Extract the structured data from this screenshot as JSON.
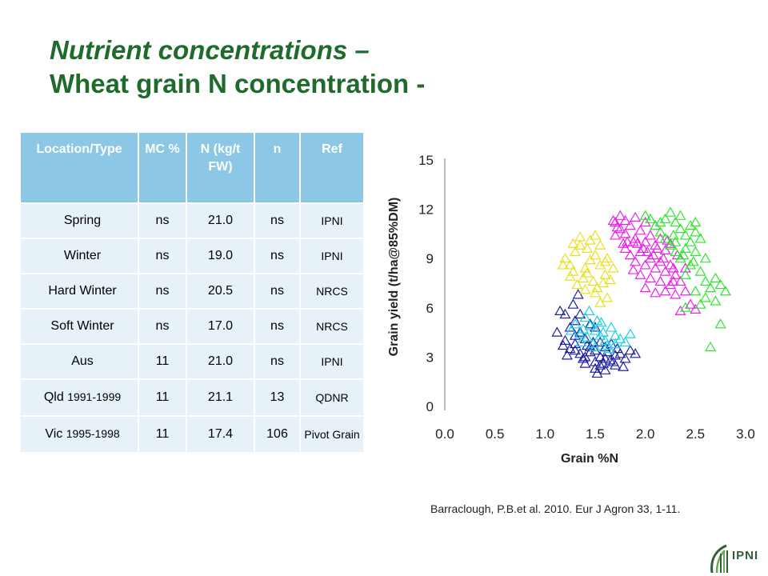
{
  "slide": {
    "title_line1": "Nutrient concentrations –",
    "title_line2": "Wheat grain N concentration -",
    "citation": "Barraclough, P.B.et al. 2010. Eur J Agron 33, 1-11.",
    "logo_text": "IPNI",
    "colors": {
      "title": "#1e6b2c",
      "header_bg": "#8cc7e6",
      "row_bg": "#e7f1f8"
    }
  },
  "table": {
    "headers": [
      "Location/Type",
      "MC %",
      "N (kg/t FW)",
      "n",
      "Ref"
    ],
    "rows": [
      {
        "loc": "Spring",
        "loc_years": "",
        "mc": "ns",
        "n_conc": "21.0",
        "n": "ns",
        "ref": "IPNI"
      },
      {
        "loc": "Winter",
        "loc_years": "",
        "mc": "ns",
        "n_conc": "19.0",
        "n": "ns",
        "ref": "IPNI"
      },
      {
        "loc": "Hard Winter",
        "loc_years": "",
        "mc": "ns",
        "n_conc": "20.5",
        "n": "ns",
        "ref": "NRCS"
      },
      {
        "loc": "Soft Winter",
        "loc_years": "",
        "mc": "ns",
        "n_conc": "17.0",
        "n": "ns",
        "ref": "NRCS"
      },
      {
        "loc": "Aus",
        "loc_years": "",
        "mc": "11",
        "n_conc": "21.0",
        "n": "ns",
        "ref": "IPNI"
      },
      {
        "loc": "Qld",
        "loc_years": "1991-1999",
        "mc": "11",
        "n_conc": "21.1",
        "n": "13",
        "ref": "QDNR"
      },
      {
        "loc": "Vic",
        "loc_years": "1995-1998",
        "mc": "11",
        "n_conc": "17.4",
        "n": "106",
        "ref": "Pivot Grain"
      }
    ]
  },
  "chart_data": {
    "type": "scatter",
    "xlabel": "Grain %N",
    "ylabel": "Grain yield (t/ha@85%DM)",
    "xlim": [
      0.0,
      3.0
    ],
    "ylim": [
      0,
      15
    ],
    "xticks": [
      "0.0",
      "0.5",
      "1.0",
      "1.5",
      "2.0",
      "2.5",
      "3.0"
    ],
    "yticks": [
      "0",
      "3",
      "6",
      "9",
      "12",
      "15"
    ],
    "marker": "open-triangle",
    "grid": false,
    "series": [
      {
        "color": "#2020a0",
        "points": [
          [
            1.2,
            5.6
          ],
          [
            1.3,
            5.2
          ],
          [
            1.25,
            4.8
          ],
          [
            1.35,
            4.5
          ],
          [
            1.4,
            4.1
          ],
          [
            1.3,
            3.8
          ],
          [
            1.45,
            3.6
          ],
          [
            1.5,
            3.4
          ],
          [
            1.35,
            3.2
          ],
          [
            1.55,
            3.0
          ],
          [
            1.6,
            2.9
          ],
          [
            1.4,
            3.0
          ],
          [
            1.5,
            2.7
          ],
          [
            1.65,
            2.8
          ],
          [
            1.7,
            3.1
          ],
          [
            1.55,
            2.5
          ],
          [
            1.45,
            3.3
          ],
          [
            1.3,
            4.3
          ],
          [
            1.2,
            4.0
          ],
          [
            1.25,
            3.5
          ],
          [
            1.6,
            3.6
          ],
          [
            1.75,
            3.2
          ],
          [
            1.8,
            2.9
          ],
          [
            1.5,
            2.3
          ],
          [
            1.4,
            2.6
          ],
          [
            1.6,
            2.2
          ],
          [
            1.7,
            2.5
          ],
          [
            1.85,
            3.4
          ],
          [
            1.35,
            5.6
          ],
          [
            1.45,
            5.0
          ],
          [
            1.15,
            5.8
          ],
          [
            1.28,
            6.2
          ],
          [
            1.5,
            4.8
          ],
          [
            1.55,
            3.9
          ],
          [
            1.42,
            3.7
          ],
          [
            1.62,
            3.3
          ],
          [
            1.3,
            3.4
          ],
          [
            1.38,
            2.9
          ],
          [
            1.48,
            3.9
          ],
          [
            1.58,
            2.6
          ],
          [
            1.68,
            2.7
          ],
          [
            1.72,
            3.5
          ],
          [
            1.22,
            3.1
          ],
          [
            1.12,
            4.5
          ],
          [
            1.78,
            2.4
          ],
          [
            1.9,
            3.2
          ],
          [
            1.52,
            2.0
          ],
          [
            1.18,
            3.7
          ],
          [
            1.66,
            3.8
          ],
          [
            1.33,
            6.8
          ]
        ]
      },
      {
        "color": "#1ecfe6",
        "points": [
          [
            1.3,
            5.0
          ],
          [
            1.4,
            5.4
          ],
          [
            1.45,
            4.9
          ],
          [
            1.5,
            4.6
          ],
          [
            1.35,
            4.4
          ],
          [
            1.55,
            4.3
          ],
          [
            1.6,
            4.0
          ],
          [
            1.42,
            4.2
          ],
          [
            1.48,
            3.8
          ],
          [
            1.58,
            4.5
          ],
          [
            1.62,
            3.7
          ],
          [
            1.7,
            4.3
          ],
          [
            1.75,
            4.1
          ],
          [
            1.52,
            5.2
          ],
          [
            1.38,
            4.7
          ],
          [
            1.66,
            4.8
          ],
          [
            1.44,
            5.8
          ],
          [
            1.56,
            5.1
          ],
          [
            1.64,
            3.5
          ],
          [
            1.8,
            3.9
          ],
          [
            1.36,
            3.9
          ],
          [
            1.26,
            4.6
          ],
          [
            1.5,
            3.6
          ],
          [
            1.7,
            3.8
          ],
          [
            1.85,
            4.4
          ]
        ]
      },
      {
        "color": "#e8e020",
        "points": [
          [
            1.2,
            9.0
          ],
          [
            1.25,
            8.6
          ],
          [
            1.3,
            9.4
          ],
          [
            1.35,
            9.8
          ],
          [
            1.4,
            8.4
          ],
          [
            1.45,
            8.9
          ],
          [
            1.5,
            9.2
          ],
          [
            1.28,
            8.2
          ],
          [
            1.38,
            7.8
          ],
          [
            1.42,
            8.1
          ],
          [
            1.55,
            8.6
          ],
          [
            1.6,
            8.0
          ],
          [
            1.48,
            7.6
          ],
          [
            1.52,
            7.2
          ],
          [
            1.58,
            7.5
          ],
          [
            1.35,
            10.3
          ],
          [
            1.45,
            10.1
          ],
          [
            1.62,
            9.0
          ],
          [
            1.18,
            8.6
          ],
          [
            1.32,
            7.4
          ],
          [
            1.4,
            7.1
          ],
          [
            1.5,
            6.9
          ],
          [
            1.65,
            7.7
          ],
          [
            1.42,
            9.6
          ],
          [
            1.55,
            9.8
          ],
          [
            1.28,
            9.9
          ],
          [
            1.6,
            8.8
          ],
          [
            1.5,
            10.4
          ],
          [
            1.68,
            8.4
          ],
          [
            1.25,
            7.9
          ],
          [
            1.62,
            6.6
          ],
          [
            1.55,
            6.3
          ]
        ]
      },
      {
        "color": "#ee20ee",
        "points": [
          [
            1.7,
            11.2
          ],
          [
            1.75,
            10.8
          ],
          [
            1.8,
            10.5
          ],
          [
            1.85,
            11.0
          ],
          [
            1.9,
            10.2
          ],
          [
            1.95,
            10.7
          ],
          [
            2.0,
            10.0
          ],
          [
            2.05,
            10.4
          ],
          [
            2.1,
            9.8
          ],
          [
            2.15,
            10.2
          ],
          [
            2.2,
            9.5
          ],
          [
            2.25,
            9.9
          ],
          [
            1.8,
            9.6
          ],
          [
            1.85,
            9.2
          ],
          [
            1.9,
            8.8
          ],
          [
            1.95,
            9.4
          ],
          [
            2.0,
            8.6
          ],
          [
            2.05,
            9.0
          ],
          [
            2.1,
            8.4
          ],
          [
            2.15,
            8.8
          ],
          [
            2.2,
            8.2
          ],
          [
            2.25,
            8.6
          ],
          [
            2.3,
            8.0
          ],
          [
            1.75,
            11.6
          ],
          [
            1.8,
            11.3
          ],
          [
            1.9,
            11.5
          ],
          [
            2.0,
            11.2
          ],
          [
            2.1,
            11.0
          ],
          [
            1.7,
            10.4
          ],
          [
            1.78,
            9.9
          ],
          [
            1.88,
            10.0
          ],
          [
            1.98,
            9.6
          ],
          [
            2.08,
            9.2
          ],
          [
            2.18,
            9.0
          ],
          [
            2.28,
            8.4
          ],
          [
            2.35,
            7.6
          ],
          [
            2.4,
            7.0
          ],
          [
            2.3,
            6.8
          ],
          [
            2.45,
            6.2
          ],
          [
            2.35,
            5.8
          ],
          [
            2.25,
            7.4
          ],
          [
            2.15,
            7.6
          ],
          [
            2.05,
            7.8
          ],
          [
            1.95,
            8.0
          ],
          [
            2.0,
            7.2
          ],
          [
            2.1,
            6.9
          ],
          [
            1.72,
            10.9
          ],
          [
            1.82,
            10.0
          ],
          [
            1.92,
            9.9
          ],
          [
            2.02,
            9.4
          ],
          [
            2.12,
            9.6
          ],
          [
            2.22,
            10.1
          ],
          [
            2.32,
            9.2
          ],
          [
            2.4,
            8.4
          ],
          [
            1.88,
            8.3
          ],
          [
            2.5,
            5.9
          ],
          [
            2.2,
            7.0
          ],
          [
            1.68,
            11.3
          ],
          [
            2.28,
            7.6
          ]
        ]
      },
      {
        "color": "#2ee62e",
        "points": [
          [
            2.1,
            11.0
          ],
          [
            2.15,
            10.6
          ],
          [
            2.2,
            11.4
          ],
          [
            2.25,
            11.8
          ],
          [
            2.3,
            11.2
          ],
          [
            2.35,
            10.8
          ],
          [
            2.4,
            10.4
          ],
          [
            2.45,
            10.0
          ],
          [
            2.5,
            10.6
          ],
          [
            2.2,
            10.2
          ],
          [
            2.3,
            10.0
          ],
          [
            2.4,
            9.6
          ],
          [
            2.5,
            9.4
          ],
          [
            2.35,
            9.0
          ],
          [
            2.45,
            8.6
          ],
          [
            2.55,
            8.2
          ],
          [
            2.6,
            7.6
          ],
          [
            2.65,
            7.2
          ],
          [
            2.7,
            7.8
          ],
          [
            2.75,
            7.4
          ],
          [
            2.6,
            6.6
          ],
          [
            2.55,
            6.2
          ],
          [
            2.7,
            6.4
          ],
          [
            2.8,
            7.0
          ],
          [
            2.5,
            7.0
          ],
          [
            2.4,
            8.0
          ],
          [
            2.3,
            9.4
          ],
          [
            2.25,
            9.8
          ],
          [
            2.15,
            11.2
          ],
          [
            2.05,
            11.4
          ],
          [
            2.0,
            11.6
          ],
          [
            2.35,
            11.6
          ],
          [
            2.45,
            11.0
          ],
          [
            2.55,
            10.2
          ],
          [
            2.6,
            9.0
          ],
          [
            2.75,
            5.0
          ],
          [
            2.65,
            3.6
          ],
          [
            2.4,
            6.0
          ],
          [
            2.5,
            11.2
          ],
          [
            2.28,
            10.4
          ],
          [
            2.38,
            9.2
          ],
          [
            2.48,
            8.8
          ]
        ]
      }
    ]
  }
}
